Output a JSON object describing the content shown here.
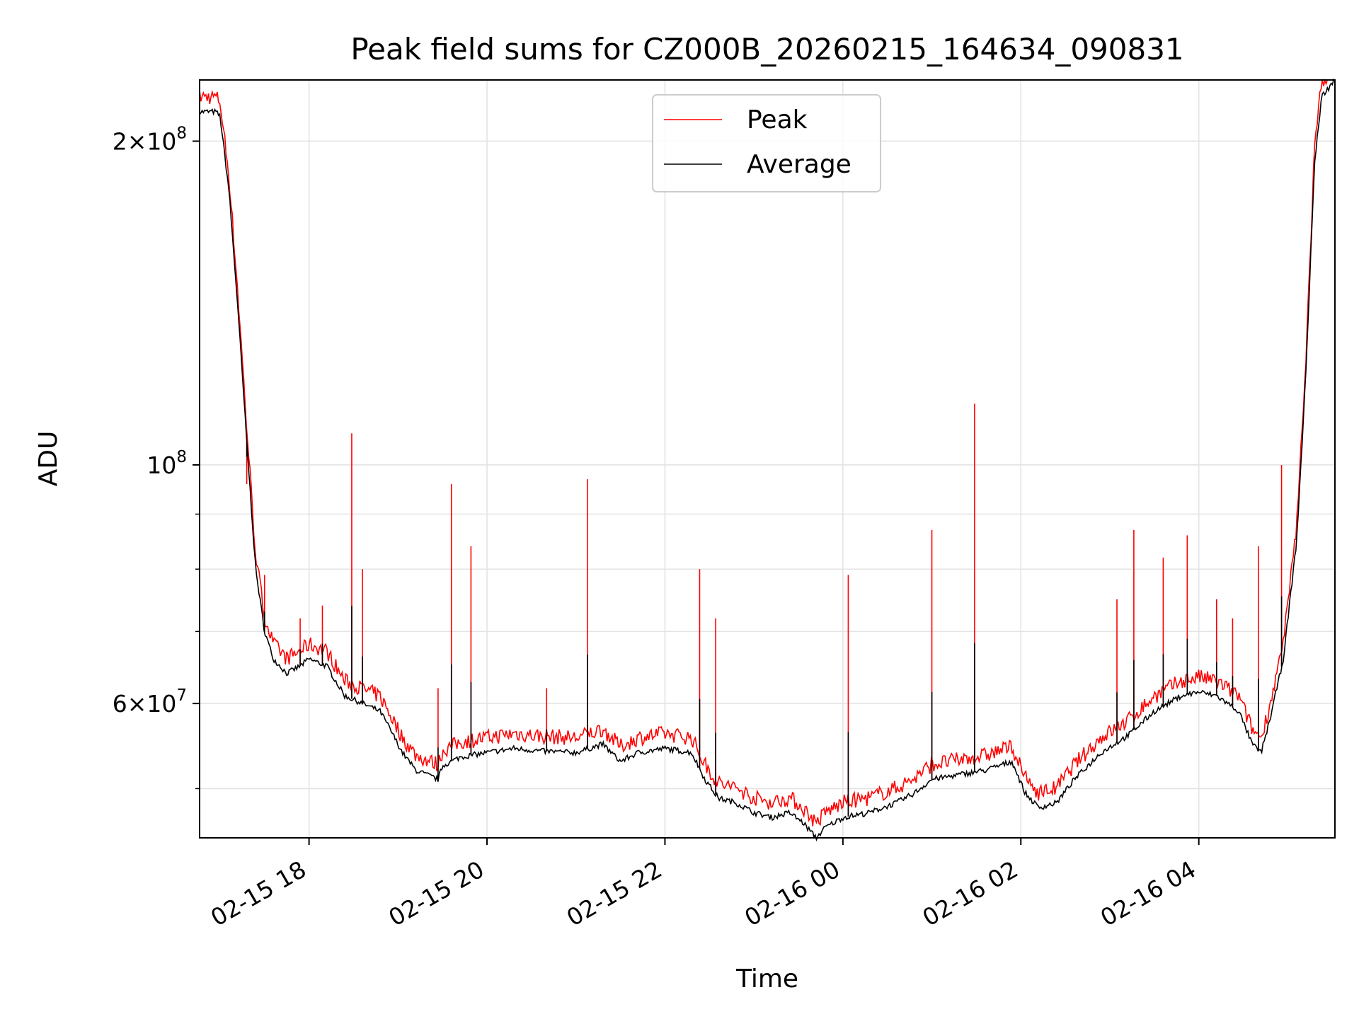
{
  "chart_data": {
    "type": "line",
    "title": "Peak field sums for CZ000B_20260215_164634_090831",
    "xlabel": "Time",
    "ylabel": "ADU",
    "yscale": "log",
    "xlim": [
      16.77,
      29.53
    ],
    "ylim": [
      45000000,
      228000000
    ],
    "x_unit": "hours since 2026-02-15 00:00",
    "x_ticks": [
      {
        "value": 18,
        "label": "02-15 18"
      },
      {
        "value": 20,
        "label": "02-15 20"
      },
      {
        "value": 22,
        "label": "02-15 22"
      },
      {
        "value": 24,
        "label": "02-16 00"
      },
      {
        "value": 26,
        "label": "02-16 02"
      },
      {
        "value": 28,
        "label": "02-16 04"
      }
    ],
    "y_major_ticks": [
      {
        "value": 60000000,
        "mantissa": "6",
        "base": "10",
        "exp": "7"
      },
      {
        "value": 100000000,
        "mantissa": "",
        "base": "10",
        "exp": "8"
      },
      {
        "value": 200000000,
        "mantissa": "2",
        "base": "10",
        "exp": "8"
      }
    ],
    "y_minor_ticks": [
      50000000,
      70000000,
      80000000,
      90000000
    ],
    "grid": true,
    "legend": {
      "placement": "top-center",
      "entries": [
        "Peak",
        "Average"
      ]
    },
    "colors": {
      "peak": "#ff0000",
      "average": "#000000",
      "grid": "#e3e3e3"
    },
    "series": [
      {
        "name": "Average",
        "color": "#000000",
        "points": [
          [
            16.77,
            213000000
          ],
          [
            16.95,
            213000000
          ],
          [
            17.0,
            211000000
          ],
          [
            17.1,
            180000000
          ],
          [
            17.2,
            140000000
          ],
          [
            17.3,
            105000000
          ],
          [
            17.4,
            80000000
          ],
          [
            17.5,
            70000000
          ],
          [
            17.6,
            66000000
          ],
          [
            17.75,
            64000000
          ],
          [
            17.9,
            65000000
          ],
          [
            18.0,
            66000000
          ],
          [
            18.2,
            65000000
          ],
          [
            18.4,
            61000000
          ],
          [
            18.6,
            60000000
          ],
          [
            18.8,
            59000000
          ],
          [
            18.9,
            57000000
          ],
          [
            19.05,
            54000000
          ],
          [
            19.2,
            52000000
          ],
          [
            19.45,
            51000000
          ],
          [
            19.5,
            52500000
          ],
          [
            19.7,
            53500000
          ],
          [
            20.0,
            54000000
          ],
          [
            20.3,
            54500000
          ],
          [
            20.6,
            54200000
          ],
          [
            21.0,
            54000000
          ],
          [
            21.3,
            55000000
          ],
          [
            21.5,
            53000000
          ],
          [
            21.7,
            54000000
          ],
          [
            22.0,
            54500000
          ],
          [
            22.3,
            54000000
          ],
          [
            22.45,
            51000000
          ],
          [
            22.6,
            49000000
          ],
          [
            22.8,
            48500000
          ],
          [
            23.0,
            47500000
          ],
          [
            23.2,
            47000000
          ],
          [
            23.4,
            47500000
          ],
          [
            23.55,
            46500000
          ],
          [
            23.7,
            45000000
          ],
          [
            23.8,
            46000000
          ],
          [
            24.0,
            47000000
          ],
          [
            24.3,
            47500000
          ],
          [
            24.6,
            48500000
          ],
          [
            24.8,
            49500000
          ],
          [
            25.0,
            51000000
          ],
          [
            25.3,
            51500000
          ],
          [
            25.6,
            52000000
          ],
          [
            25.9,
            53000000
          ],
          [
            26.05,
            49500000
          ],
          [
            26.2,
            48000000
          ],
          [
            26.4,
            48500000
          ],
          [
            26.6,
            51000000
          ],
          [
            26.9,
            54000000
          ],
          [
            27.2,
            56000000
          ],
          [
            27.5,
            59000000
          ],
          [
            27.8,
            61000000
          ],
          [
            28.0,
            61500000
          ],
          [
            28.2,
            61000000
          ],
          [
            28.45,
            59000000
          ],
          [
            28.6,
            55000000
          ],
          [
            28.7,
            54000000
          ],
          [
            28.8,
            58000000
          ],
          [
            28.95,
            66000000
          ],
          [
            29.1,
            85000000
          ],
          [
            29.2,
            120000000
          ],
          [
            29.3,
            190000000
          ],
          [
            29.38,
            220000000
          ],
          [
            29.53,
            228000000
          ]
        ]
      },
      {
        "name": "Peak",
        "color": "#ff0000",
        "spikes": [
          [
            17.3,
            96000000
          ],
          [
            17.5,
            79000000
          ],
          [
            18.48,
            107000000
          ],
          [
            18.6,
            80000000
          ],
          [
            19.6,
            96000000
          ],
          [
            19.82,
            84000000
          ],
          [
            21.13,
            97000000
          ],
          [
            22.39,
            80000000
          ],
          [
            22.57,
            72000000
          ],
          [
            24.06,
            79000000
          ],
          [
            25.0,
            87000000
          ],
          [
            25.48,
            114000000
          ],
          [
            28.67,
            84000000
          ],
          [
            28.93,
            100000000
          ],
          [
            27.27,
            87000000
          ],
          [
            27.6,
            82000000
          ],
          [
            27.87,
            86000000
          ],
          [
            27.08,
            75000000
          ],
          [
            28.2,
            75000000
          ],
          [
            28.38,
            72000000
          ],
          [
            19.45,
            62000000
          ],
          [
            20.67,
            62000000
          ],
          [
            18.15,
            74000000
          ],
          [
            17.9,
            72000000
          ]
        ]
      }
    ]
  }
}
